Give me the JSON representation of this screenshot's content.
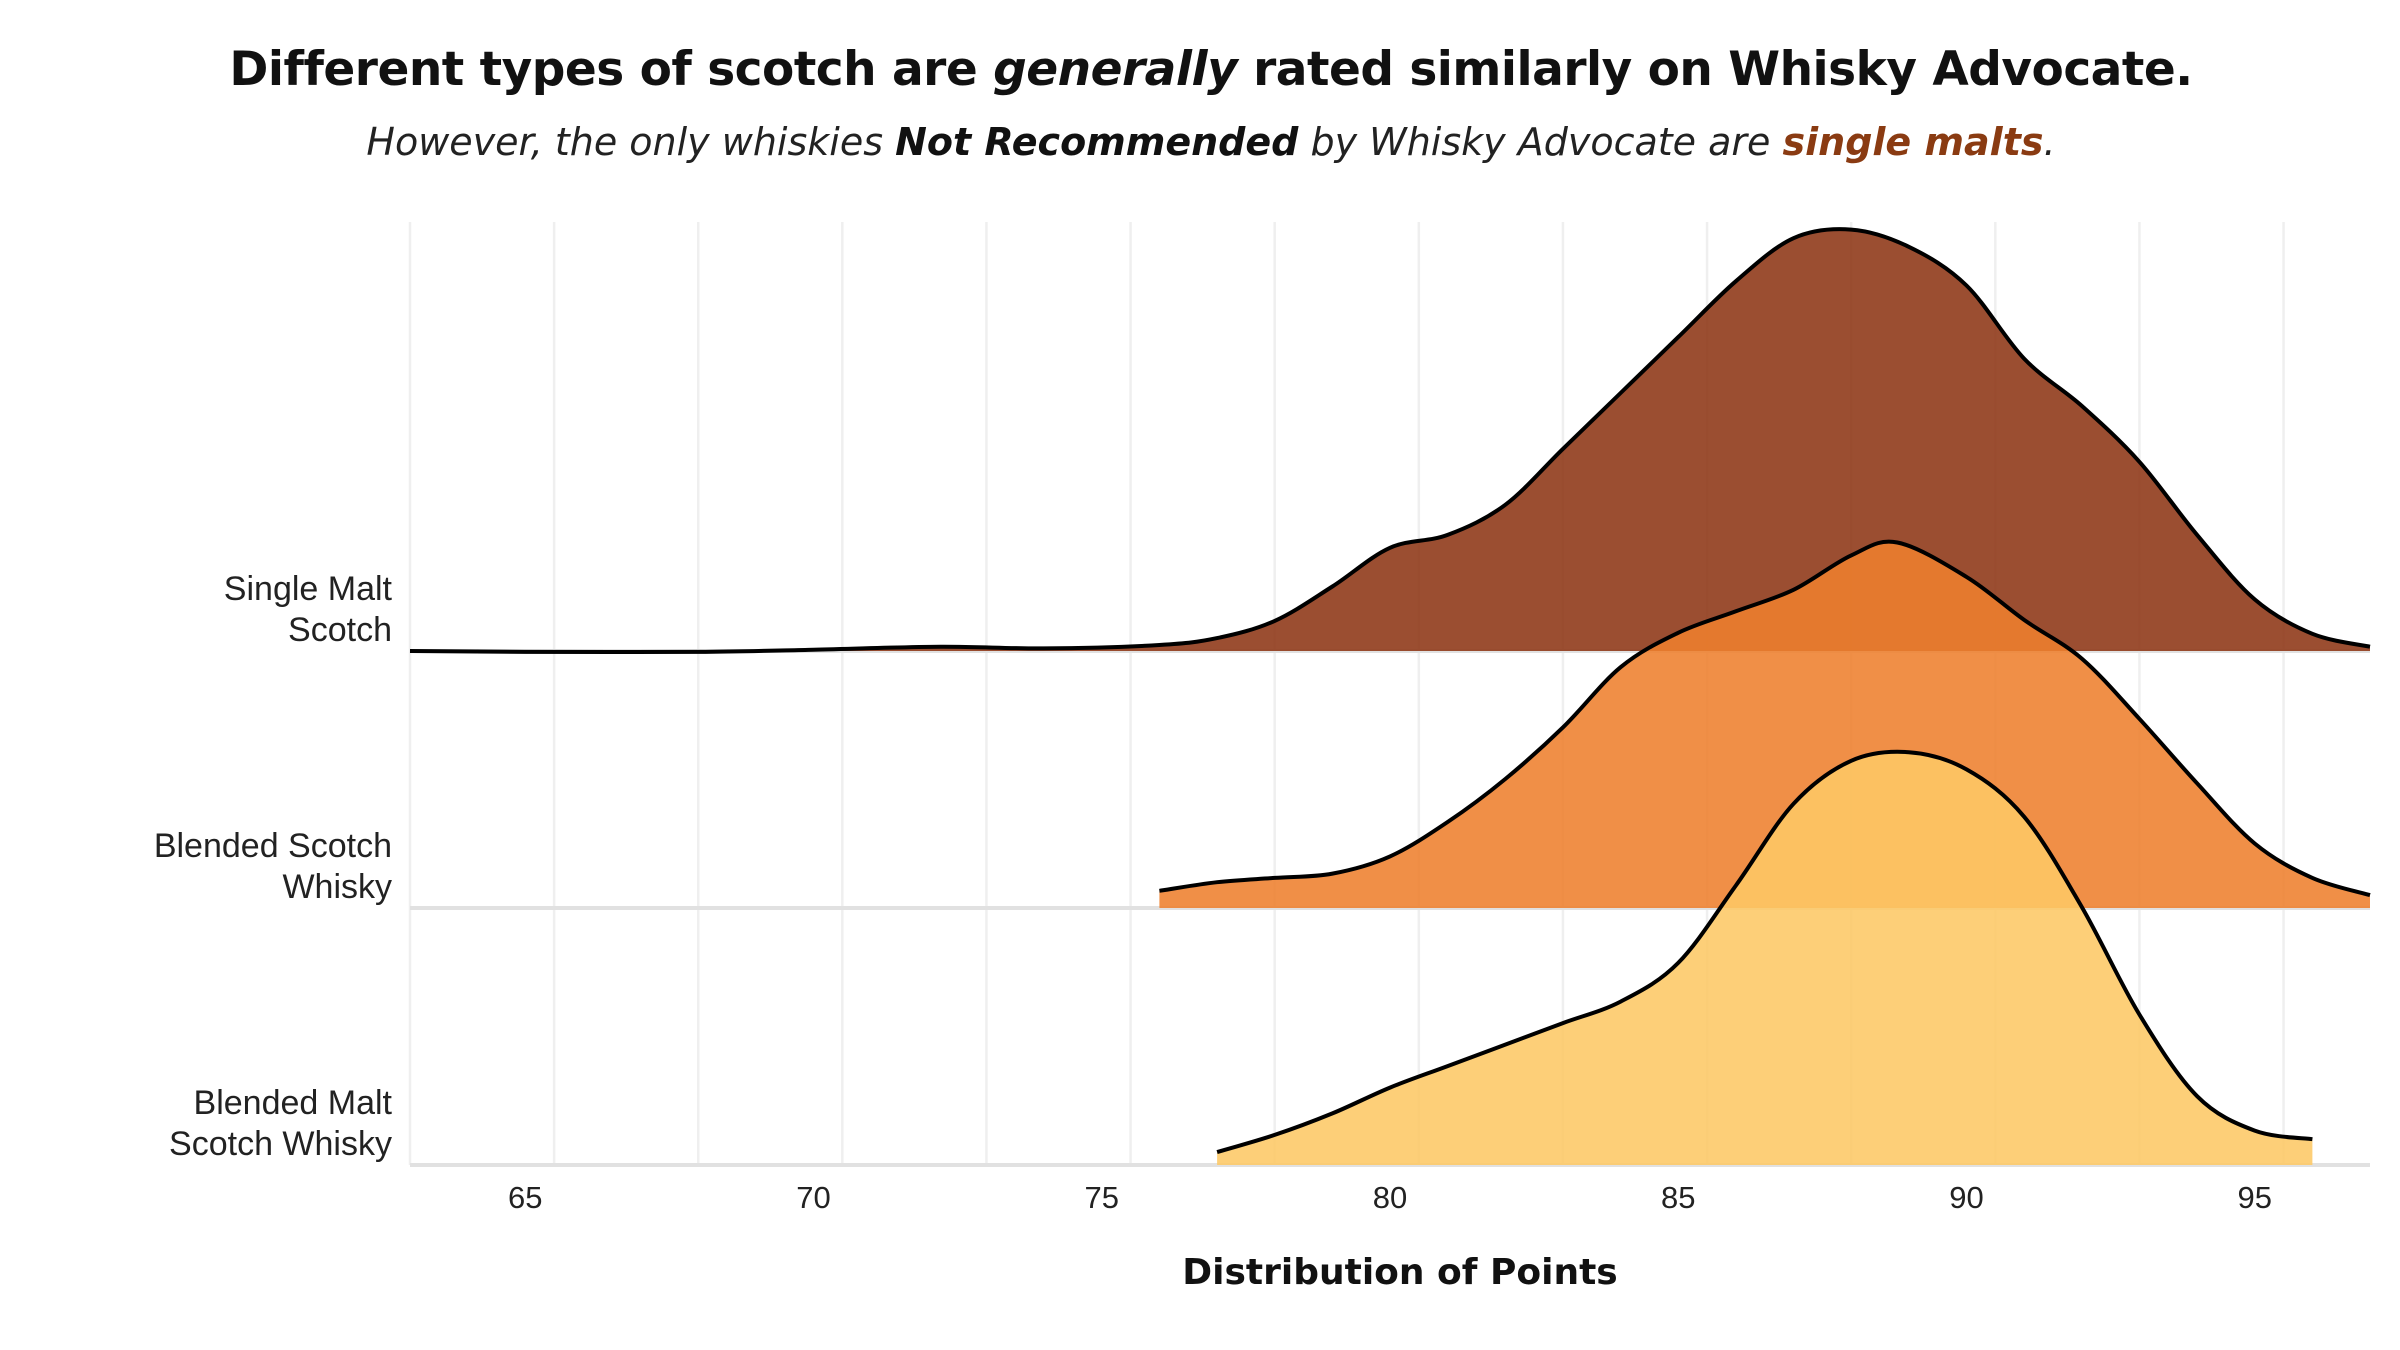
{
  "title": {
    "before": "Different types of scotch are ",
    "emph": "generally",
    "after": " rated similarly on Whisky Advocate."
  },
  "subtitle": {
    "part1": "However, the only whiskies ",
    "bold": "Not Recommended",
    "part2": " by Whisky Advocate are ",
    "accent": "single malts",
    "part3": "."
  },
  "chart_data": {
    "type": "ridgeline-density",
    "xlabel": "Distribution of Points",
    "xlim": [
      63,
      97
    ],
    "xticks": [
      "65",
      "70",
      "75",
      "80",
      "85",
      "90",
      "95"
    ],
    "grid": true,
    "legend": "none",
    "categories": [
      {
        "label_lines": [
          "Blended Malt",
          "Scotch Whisky"
        ],
        "color": "#fdc865",
        "points": [
          [
            77,
            0.03
          ],
          [
            78,
            0.07
          ],
          [
            79,
            0.12
          ],
          [
            80,
            0.18
          ],
          [
            81,
            0.23
          ],
          [
            82,
            0.28
          ],
          [
            83,
            0.33
          ],
          [
            84,
            0.38
          ],
          [
            85,
            0.47
          ],
          [
            86,
            0.65
          ],
          [
            87,
            0.84
          ],
          [
            88,
            0.94
          ],
          [
            89,
            0.96
          ],
          [
            90,
            0.92
          ],
          [
            91,
            0.81
          ],
          [
            92,
            0.6
          ],
          [
            93,
            0.35
          ],
          [
            94,
            0.16
          ],
          [
            95,
            0.08
          ],
          [
            96,
            0.06
          ]
        ]
      },
      {
        "label_lines": [
          "Blended Scotch",
          "Whisky"
        ],
        "color": "#ee7f2d",
        "points": [
          [
            76,
            0.04
          ],
          [
            77,
            0.06
          ],
          [
            78,
            0.07
          ],
          [
            79,
            0.08
          ],
          [
            80,
            0.12
          ],
          [
            81,
            0.2
          ],
          [
            82,
            0.3
          ],
          [
            83,
            0.42
          ],
          [
            84,
            0.56
          ],
          [
            85,
            0.64
          ],
          [
            86,
            0.69
          ],
          [
            87,
            0.74
          ],
          [
            88,
            0.82
          ],
          [
            88.8,
            0.85
          ],
          [
            90,
            0.77
          ],
          [
            91,
            0.67
          ],
          [
            92,
            0.58
          ],
          [
            93,
            0.44
          ],
          [
            94,
            0.29
          ],
          [
            95,
            0.15
          ],
          [
            96,
            0.07
          ],
          [
            97,
            0.03
          ]
        ]
      },
      {
        "label_lines": [
          "Single Malt",
          "Scotch"
        ],
        "color": "#8d3615",
        "points": [
          [
            63,
            0.0
          ],
          [
            65,
            -0.002
          ],
          [
            68,
            -0.002
          ],
          [
            70,
            0.003
          ],
          [
            72.2,
            0.01
          ],
          [
            74,
            0.006
          ],
          [
            76,
            0.014
          ],
          [
            77,
            0.03
          ],
          [
            78,
            0.07
          ],
          [
            79,
            0.15
          ],
          [
            80,
            0.24
          ],
          [
            81,
            0.27
          ],
          [
            82,
            0.34
          ],
          [
            83,
            0.47
          ],
          [
            84,
            0.6
          ],
          [
            85,
            0.73
          ],
          [
            86,
            0.86
          ],
          [
            87,
            0.96
          ],
          [
            88,
            0.98
          ],
          [
            89,
            0.94
          ],
          [
            90,
            0.85
          ],
          [
            91,
            0.68
          ],
          [
            92,
            0.57
          ],
          [
            93,
            0.44
          ],
          [
            94,
            0.27
          ],
          [
            95,
            0.12
          ],
          [
            96,
            0.04
          ],
          [
            97,
            0.01
          ]
        ]
      }
    ]
  }
}
